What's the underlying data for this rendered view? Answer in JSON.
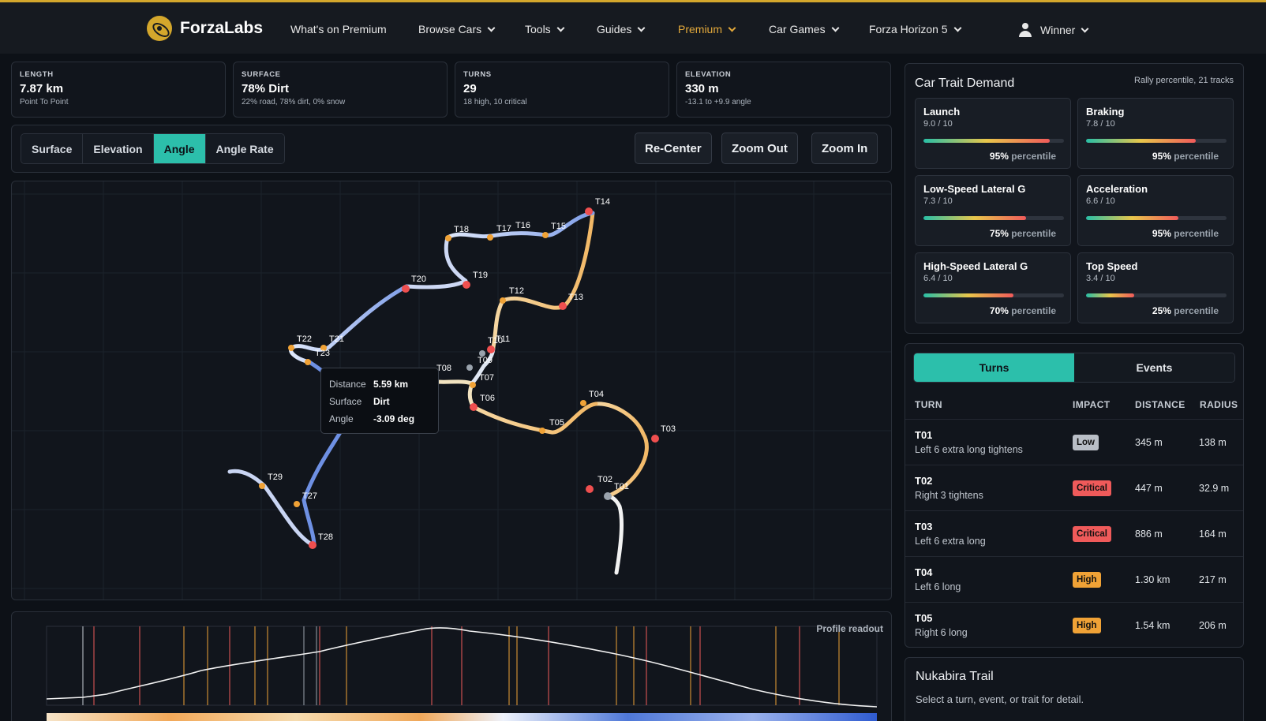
{
  "brand": {
    "name": "ForzaLabs",
    "accent": "#d4a72c"
  },
  "nav": [
    {
      "label": "What's on Premium",
      "dropdown": false
    },
    {
      "label": "Browse Cars",
      "dropdown": true
    },
    {
      "label": "Tools",
      "dropdown": true
    },
    {
      "label": "Guides",
      "dropdown": true
    },
    {
      "label": "Premium",
      "dropdown": true
    },
    {
      "label": "Car Games",
      "dropdown": true
    },
    {
      "label": "Forza Horizon 5",
      "dropdown": true
    }
  ],
  "user": {
    "name": "Winner"
  },
  "stats": [
    {
      "label": "LENGTH",
      "value": "7.87 km",
      "sub": "Point To Point"
    },
    {
      "label": "SURFACE",
      "value": "78% Dirt",
      "sub": "22% road, 78% dirt, 0% snow"
    },
    {
      "label": "TURNS",
      "value": "29",
      "sub": "18 high, 10 critical"
    },
    {
      "label": "ELEVATION",
      "value": "330 m",
      "sub": "-13.1 to +9.9 angle"
    }
  ],
  "view_modes": {
    "items": [
      "Surface",
      "Elevation",
      "Angle",
      "Angle Rate"
    ],
    "active": "Angle"
  },
  "map_controls": {
    "recenter": "Re-Center",
    "zoom_out": "Zoom Out",
    "zoom_in": "Zoom In"
  },
  "map": {
    "turn_labels": [
      "T01",
      "T02",
      "T03",
      "T04",
      "T05",
      "T06",
      "T07",
      "T08",
      "T09",
      "T10",
      "T11",
      "T12",
      "T13",
      "T14",
      "T15",
      "T16",
      "T17",
      "T18",
      "T19",
      "T20",
      "T21",
      "T22",
      "T23",
      "T27",
      "T28",
      "T29"
    ],
    "tooltip": {
      "rows": [
        {
          "key": "Distance",
          "value": "5.59 km"
        },
        {
          "key": "Surface",
          "value": "Dirt"
        },
        {
          "key": "Angle",
          "value": "-3.09 deg"
        }
      ]
    }
  },
  "profile": {
    "title": "Profile readout"
  },
  "traits": {
    "title": "Car Trait Demand",
    "meta": "Rally percentile, 21 tracks",
    "pct_suffix": "percentile",
    "items": [
      {
        "name": "Launch",
        "score": "9.0 / 10",
        "percentile": "95%",
        "level": 0.9
      },
      {
        "name": "Braking",
        "score": "7.8 / 10",
        "percentile": "95%",
        "level": 0.78
      },
      {
        "name": "Low-Speed Lateral G",
        "score": "7.3 / 10",
        "percentile": "75%",
        "level": 0.73
      },
      {
        "name": "Acceleration",
        "score": "6.6 / 10",
        "percentile": "95%",
        "level": 0.66
      },
      {
        "name": "High-Speed Lateral G",
        "score": "6.4 / 10",
        "percentile": "70%",
        "level": 0.64
      },
      {
        "name": "Top Speed",
        "score": "3.4 / 10",
        "percentile": "25%",
        "level": 0.34
      }
    ]
  },
  "turns_panel": {
    "tabs": [
      "Turns",
      "Events"
    ],
    "active_tab": "Turns",
    "headers": {
      "turn": "TURN",
      "impact": "IMPACT",
      "distance": "DISTANCE",
      "radius": "RADIUS"
    },
    "impact_colors": {
      "Low": "#b9bec6",
      "Critical": "#ef5a5a",
      "High": "#f0a236"
    },
    "rows": [
      {
        "turn": "T01",
        "desc": "Left 6 extra long tightens",
        "impact": "Low",
        "distance": "345 m",
        "radius": "138 m"
      },
      {
        "turn": "T02",
        "desc": "Right 3 tightens",
        "impact": "Critical",
        "distance": "447 m",
        "radius": "32.9 m"
      },
      {
        "turn": "T03",
        "desc": "Left 6 extra long",
        "impact": "Critical",
        "distance": "886 m",
        "radius": "164 m"
      },
      {
        "turn": "T04",
        "desc": "Left 6 long",
        "impact": "High",
        "distance": "1.30 km",
        "radius": "217 m"
      },
      {
        "turn": "T05",
        "desc": "Right 6 long",
        "impact": "High",
        "distance": "1.54 km",
        "radius": "206 m"
      }
    ]
  },
  "detail": {
    "title": "Nukabira Trail",
    "subtitle": "Select a turn, event, or trait for detail."
  }
}
